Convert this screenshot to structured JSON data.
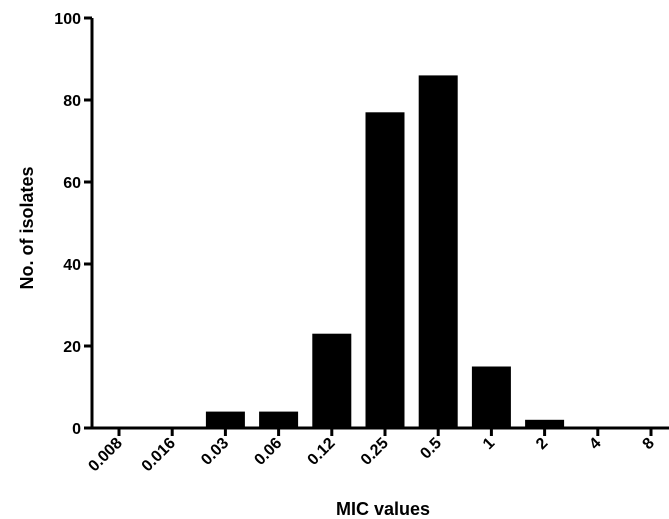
{
  "chart_data": {
    "type": "bar",
    "categories": [
      "0.008",
      "0.016",
      "0.03",
      "0.06",
      "0.12",
      "0.25",
      "0.5",
      "1",
      "2",
      "4",
      "8"
    ],
    "values": [
      0,
      0,
      4,
      4,
      23,
      77,
      86,
      15,
      2,
      0,
      0
    ],
    "xlabel": "MIC values",
    "ylabel": "No. of isolates",
    "ylim": [
      0,
      100
    ],
    "yticks": [
      "0",
      "20",
      "40",
      "60",
      "80",
      "100"
    ],
    "grid": false,
    "bar_color": "#000000"
  }
}
